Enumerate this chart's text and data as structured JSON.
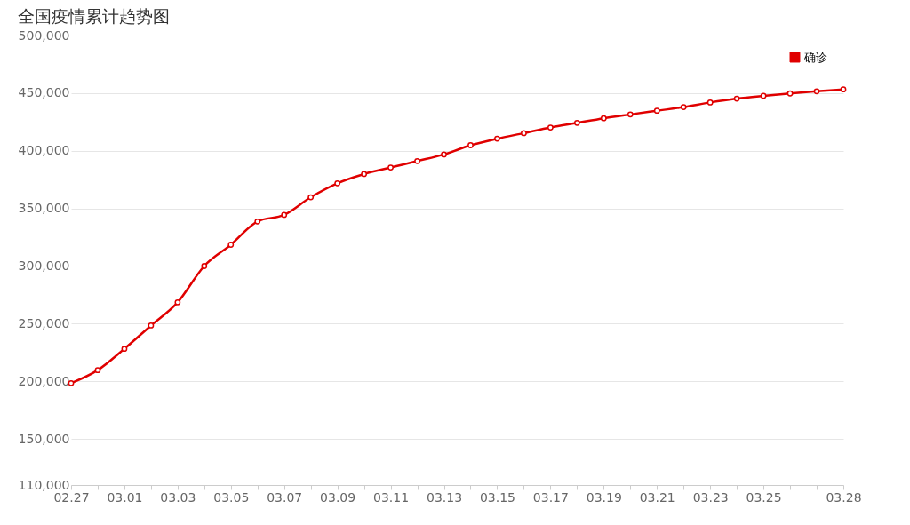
{
  "chart_data": {
    "type": "line",
    "title": "全国疫情累计趋势图",
    "categories": [
      "02.27",
      null,
      "03.01",
      null,
      "03.03",
      null,
      "03.05",
      null,
      "03.07",
      null,
      "03.09",
      null,
      "03.11",
      null,
      "03.13",
      null,
      "03.15",
      null,
      "03.17",
      null,
      "03.19",
      null,
      "03.21",
      null,
      "03.23",
      null,
      "03.25",
      null,
      null,
      "03.28"
    ],
    "series": [
      {
        "name": "确诊",
        "color": "#e00000",
        "values": [
          198400,
          209700,
          228200,
          248400,
          268500,
          300000,
          318500,
          338700,
          344400,
          359700,
          371800,
          379800,
          385500,
          391100,
          396800,
          404800,
          410500,
          415300,
          420200,
          424200,
          428200,
          431500,
          434700,
          437900,
          441900,
          445200,
          447600,
          449700,
          451600,
          453200
        ]
      }
    ],
    "ylim": [
      110000,
      500000
    ],
    "yticks": [
      {
        "value": 110000,
        "label": "110,000"
      },
      {
        "value": 150000,
        "label": "150,000"
      },
      {
        "value": 200000,
        "label": "200,000"
      },
      {
        "value": 250000,
        "label": "250,000"
      },
      {
        "value": 300000,
        "label": "300,000"
      },
      {
        "value": 350000,
        "label": "350,000"
      },
      {
        "value": 400000,
        "label": "400,000"
      },
      {
        "value": 450000,
        "label": "450,000"
      },
      {
        "value": 500000,
        "label": "500,000"
      }
    ],
    "grid": "y",
    "legend": "top right",
    "marker": "circle",
    "line_style": "solid"
  }
}
